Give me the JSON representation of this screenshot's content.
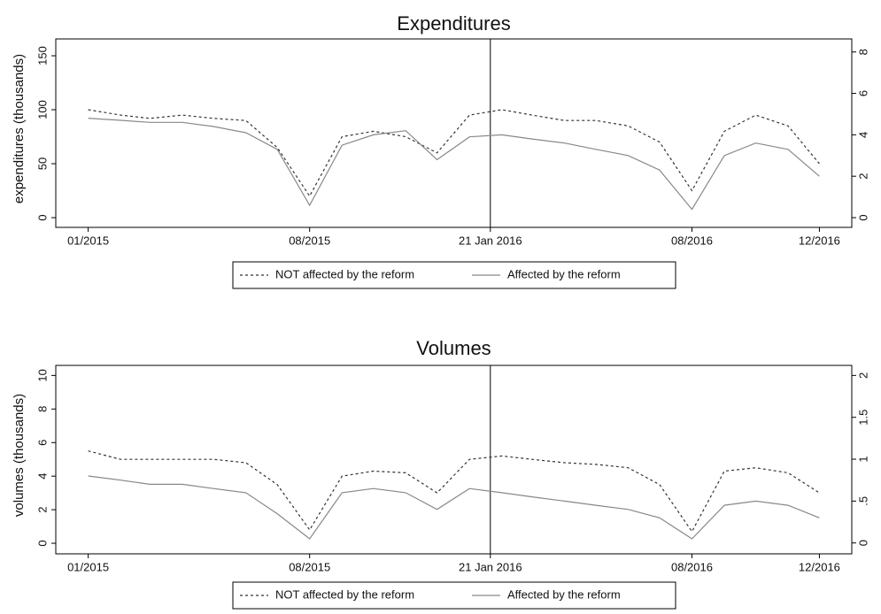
{
  "chart_data": [
    {
      "type": "line",
      "title": "Expenditures",
      "ylabel": "expenditures (thousands)",
      "x": [
        "2015-01",
        "2015-02",
        "2015-03",
        "2015-04",
        "2015-05",
        "2015-06",
        "2015-07",
        "2015-08",
        "2015-09",
        "2015-10",
        "2015-11",
        "2015-12",
        "2016-01",
        "2016-02",
        "2016-03",
        "2016-04",
        "2016-05",
        "2016-06",
        "2016-07",
        "2016-08",
        "2016-09",
        "2016-10",
        "2016-11",
        "2016-12"
      ],
      "series": [
        {
          "name": "NOT affected by the reform",
          "color": "#333333",
          "dashed": true,
          "axis": "y",
          "values": [
            100,
            95,
            92,
            95,
            92,
            90,
            65,
            20,
            75,
            80,
            75,
            60,
            95,
            100,
            95,
            90,
            90,
            85,
            70,
            25,
            80,
            95,
            85,
            50
          ]
        },
        {
          "name": "Affected by the reform",
          "color": "#888888",
          "dashed": false,
          "axis": "y2",
          "values": [
            4.8,
            4.7,
            4.6,
            4.6,
            4.4,
            4.1,
            3.3,
            0.6,
            3.5,
            4.0,
            4.2,
            2.8,
            3.9,
            4.0,
            3.8,
            3.6,
            3.3,
            3.0,
            2.3,
            0.4,
            3.0,
            3.6,
            3.3,
            2.0
          ]
        }
      ],
      "xlim": [
        "2014-12",
        "2017-01"
      ],
      "xticks": [
        {
          "value": "2015-01",
          "label": "01/2015"
        },
        {
          "value": "2015-08",
          "label": "08/2015"
        },
        {
          "value": "2016-01-21",
          "label": "21 Jan 2016"
        },
        {
          "value": "2016-08",
          "label": "08/2016"
        },
        {
          "value": "2016-12",
          "label": "12/2016"
        }
      ],
      "ylim": [
        -9,
        165.6
      ],
      "yticks": [
        0,
        50,
        100,
        150
      ],
      "y2lim": [
        -0.47,
        8.63
      ],
      "y2ticks": [
        0,
        2,
        4,
        6,
        8
      ]
    },
    {
      "type": "line",
      "title": "Volumes",
      "ylabel": "volumes (thousands)",
      "x": [
        "2015-01",
        "2015-02",
        "2015-03",
        "2015-04",
        "2015-05",
        "2015-06",
        "2015-07",
        "2015-08",
        "2015-09",
        "2015-10",
        "2015-11",
        "2015-12",
        "2016-01",
        "2016-02",
        "2016-03",
        "2016-04",
        "2016-05",
        "2016-06",
        "2016-07",
        "2016-08",
        "2016-09",
        "2016-10",
        "2016-11",
        "2016-12"
      ],
      "series": [
        {
          "name": "NOT affected by the reform",
          "color": "#333333",
          "dashed": true,
          "axis": "y",
          "values": [
            5.5,
            5,
            5,
            5,
            5,
            4.8,
            3.5,
            0.8,
            4.0,
            4.3,
            4.2,
            3.0,
            5.0,
            5.2,
            5.0,
            4.8,
            4.7,
            4.5,
            3.5,
            0.7,
            4.3,
            4.5,
            4.2,
            3.0
          ]
        },
        {
          "name": "Affected by the reform",
          "color": "#888888",
          "dashed": false,
          "axis": "y2",
          "values": [
            0.8,
            0.75,
            0.7,
            0.7,
            0.65,
            0.6,
            0.35,
            0.05,
            0.6,
            0.65,
            0.6,
            0.4,
            0.65,
            0.6,
            0.55,
            0.5,
            0.45,
            0.4,
            0.3,
            0.05,
            0.45,
            0.5,
            0.45,
            0.3
          ]
        }
      ],
      "xlim": [
        "2014-12",
        "2017-01"
      ],
      "xticks": [
        {
          "value": "2015-01",
          "label": "01/2015"
        },
        {
          "value": "2015-08",
          "label": "08/2015"
        },
        {
          "value": "2016-01-21",
          "label": "21 Jan 2016"
        },
        {
          "value": "2016-08",
          "label": "08/2016"
        },
        {
          "value": "2016-12",
          "label": "12/2016"
        }
      ],
      "ylim": [
        -0.63,
        10.6
      ],
      "yticks": [
        0,
        2,
        4,
        6,
        8,
        10
      ],
      "y2lim": [
        -0.13,
        2.12
      ],
      "y2ticks": [
        0,
        {
          "value": 0.5,
          "label": ".5"
        },
        1,
        1.5,
        2
      ]
    }
  ]
}
